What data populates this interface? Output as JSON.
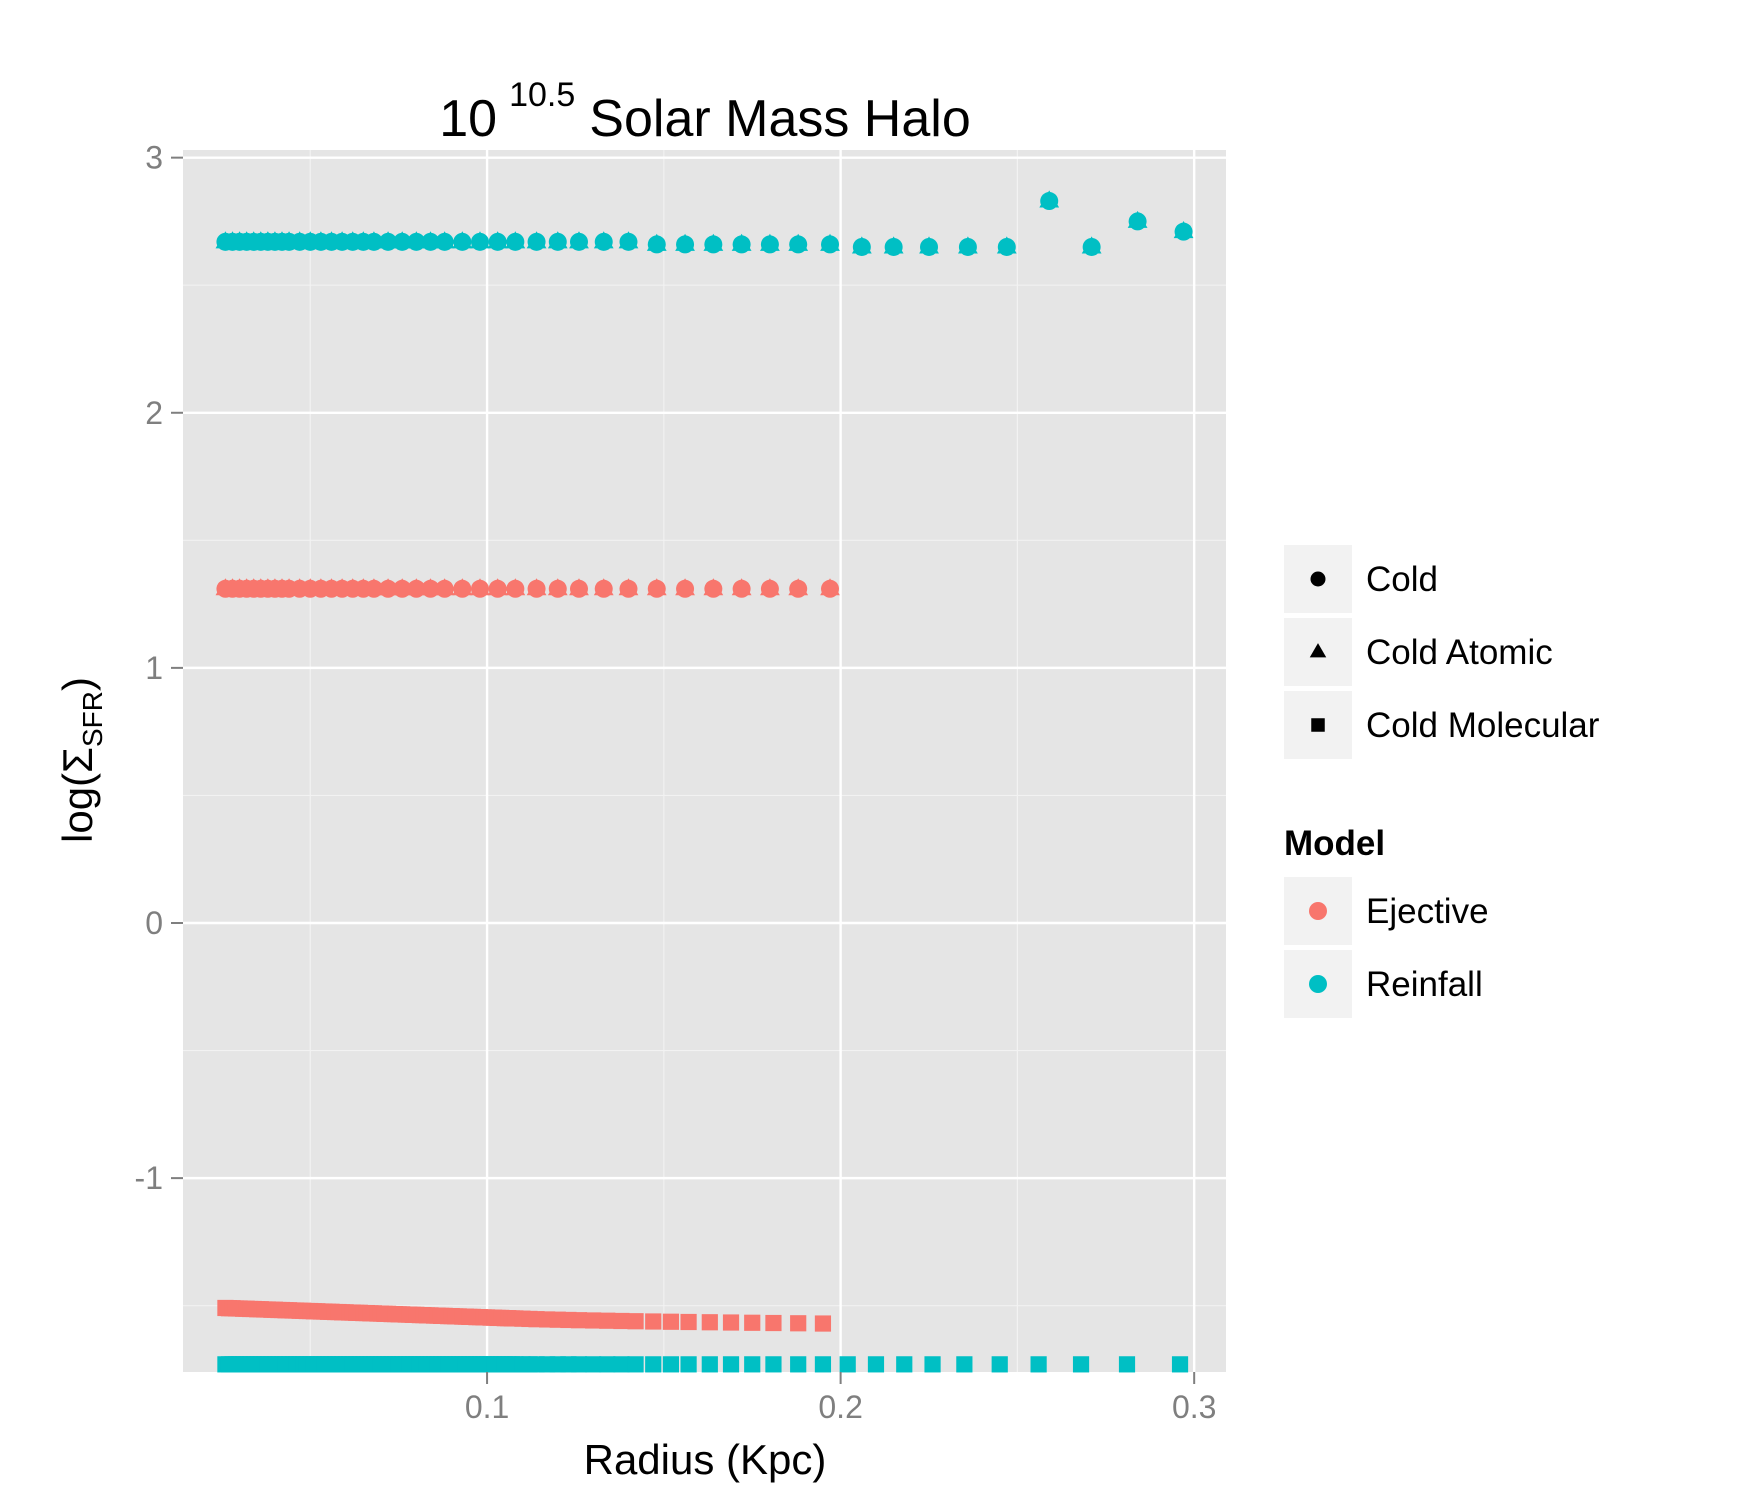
{
  "chart_data": {
    "type": "scatter",
    "title": {
      "base": "10",
      "exponent": "10.5",
      "rest": "Solar Mass Halo"
    },
    "xlabel": "Radius (Kpc)",
    "ylabel": {
      "prefix": "log(",
      "symbol": "Σ",
      "subscript": "SFR",
      "suffix": ")"
    },
    "xlim": [
      0.014,
      0.309
    ],
    "ylim": [
      -1.76,
      3.03
    ],
    "x_ticks": [
      0.1,
      0.2,
      0.3
    ],
    "x_tick_labels": [
      "0.1",
      "0.2",
      "0.3"
    ],
    "y_ticks": [
      -1,
      0,
      1,
      2,
      3
    ],
    "y_tick_labels": [
      "-1",
      "0",
      "1",
      "2",
      "3"
    ],
    "grid": true,
    "legend_placement": "right",
    "shape_legend": [
      {
        "label": "Cold",
        "shape": "circle"
      },
      {
        "label": "Cold Atomic",
        "shape": "triangle"
      },
      {
        "label": "Cold Molecular",
        "shape": "square"
      }
    ],
    "color_legend": {
      "title": "Model",
      "entries": [
        {
          "label": "Ejective",
          "color": "#F8766D"
        },
        {
          "label": "Reinfall",
          "color": "#00BFC4"
        }
      ]
    },
    "series": [
      {
        "model": "Reinfall",
        "component": "Cold",
        "shape": "circle",
        "color": "#00BFC4",
        "x": [
          0.026,
          0.028,
          0.03,
          0.032,
          0.034,
          0.036,
          0.038,
          0.04,
          0.042,
          0.044,
          0.047,
          0.05,
          0.053,
          0.056,
          0.059,
          0.062,
          0.065,
          0.068,
          0.072,
          0.076,
          0.08,
          0.084,
          0.088,
          0.093,
          0.098,
          0.103,
          0.108,
          0.114,
          0.12,
          0.126,
          0.133,
          0.14,
          0.148,
          0.156,
          0.164,
          0.172,
          0.18,
          0.188,
          0.197,
          0.206,
          0.215,
          0.225,
          0.236,
          0.247,
          0.259,
          0.271,
          0.284,
          0.297
        ],
        "y": [
          2.67,
          2.67,
          2.67,
          2.67,
          2.67,
          2.67,
          2.67,
          2.67,
          2.67,
          2.67,
          2.67,
          2.67,
          2.67,
          2.67,
          2.67,
          2.67,
          2.67,
          2.67,
          2.67,
          2.67,
          2.67,
          2.67,
          2.67,
          2.67,
          2.67,
          2.67,
          2.67,
          2.67,
          2.67,
          2.67,
          2.67,
          2.67,
          2.66,
          2.66,
          2.66,
          2.66,
          2.66,
          2.66,
          2.66,
          2.65,
          2.65,
          2.65,
          2.65,
          2.65,
          2.83,
          2.65,
          2.75,
          2.71
        ]
      },
      {
        "model": "Reinfall",
        "component": "Cold Atomic",
        "shape": "triangle",
        "color": "#00BFC4",
        "x": [
          0.026,
          0.028,
          0.03,
          0.032,
          0.034,
          0.036,
          0.038,
          0.04,
          0.042,
          0.044,
          0.047,
          0.05,
          0.053,
          0.056,
          0.059,
          0.062,
          0.065,
          0.068,
          0.072,
          0.076,
          0.08,
          0.084,
          0.088,
          0.093,
          0.098,
          0.103,
          0.108,
          0.114,
          0.12,
          0.126,
          0.133,
          0.14,
          0.148,
          0.156,
          0.164,
          0.172,
          0.18,
          0.188,
          0.197,
          0.206,
          0.215,
          0.225,
          0.236,
          0.247,
          0.259,
          0.271,
          0.284,
          0.297
        ],
        "y": [
          2.67,
          2.67,
          2.67,
          2.67,
          2.67,
          2.67,
          2.67,
          2.67,
          2.67,
          2.67,
          2.67,
          2.67,
          2.67,
          2.67,
          2.67,
          2.67,
          2.67,
          2.67,
          2.67,
          2.67,
          2.67,
          2.67,
          2.67,
          2.67,
          2.67,
          2.67,
          2.67,
          2.67,
          2.67,
          2.67,
          2.67,
          2.67,
          2.66,
          2.66,
          2.66,
          2.66,
          2.66,
          2.66,
          2.66,
          2.65,
          2.65,
          2.65,
          2.65,
          2.65,
          2.83,
          2.65,
          2.75,
          2.71
        ]
      },
      {
        "model": "Ejective",
        "component": "Cold",
        "shape": "circle",
        "color": "#F8766D",
        "x": [
          0.026,
          0.028,
          0.03,
          0.032,
          0.034,
          0.036,
          0.038,
          0.04,
          0.042,
          0.044,
          0.047,
          0.05,
          0.053,
          0.056,
          0.059,
          0.062,
          0.065,
          0.068,
          0.072,
          0.076,
          0.08,
          0.084,
          0.088,
          0.093,
          0.098,
          0.103,
          0.108,
          0.114,
          0.12,
          0.126,
          0.133,
          0.14,
          0.148,
          0.156,
          0.164,
          0.172,
          0.18,
          0.188,
          0.197
        ],
        "y": [
          1.31,
          1.31,
          1.31,
          1.31,
          1.31,
          1.31,
          1.31,
          1.31,
          1.31,
          1.31,
          1.31,
          1.31,
          1.31,
          1.31,
          1.31,
          1.31,
          1.31,
          1.31,
          1.31,
          1.31,
          1.31,
          1.31,
          1.31,
          1.31,
          1.31,
          1.31,
          1.31,
          1.31,
          1.31,
          1.31,
          1.31,
          1.31,
          1.31,
          1.31,
          1.31,
          1.31,
          1.31,
          1.31,
          1.31
        ]
      },
      {
        "model": "Ejective",
        "component": "Cold Atomic",
        "shape": "triangle",
        "color": "#F8766D",
        "x": [
          0.026,
          0.028,
          0.03,
          0.032,
          0.034,
          0.036,
          0.038,
          0.04,
          0.042,
          0.044,
          0.047,
          0.05,
          0.053,
          0.056,
          0.059,
          0.062,
          0.065,
          0.068,
          0.072,
          0.076,
          0.08,
          0.084,
          0.088,
          0.093,
          0.098,
          0.103,
          0.108,
          0.114,
          0.12,
          0.126,
          0.133,
          0.14,
          0.148,
          0.156,
          0.164,
          0.172,
          0.18,
          0.188,
          0.197
        ],
        "y": [
          1.31,
          1.31,
          1.31,
          1.31,
          1.31,
          1.31,
          1.31,
          1.31,
          1.31,
          1.31,
          1.31,
          1.31,
          1.31,
          1.31,
          1.31,
          1.31,
          1.31,
          1.31,
          1.31,
          1.31,
          1.31,
          1.31,
          1.31,
          1.31,
          1.31,
          1.31,
          1.31,
          1.31,
          1.31,
          1.31,
          1.31,
          1.31,
          1.31,
          1.31,
          1.31,
          1.31,
          1.31,
          1.31,
          1.31
        ]
      },
      {
        "model": "Ejective",
        "component": "Cold Molecular",
        "shape": "square",
        "color": "#F8766D",
        "x": [
          0.026,
          0.027,
          0.028,
          0.029,
          0.03,
          0.031,
          0.032,
          0.033,
          0.034,
          0.035,
          0.036,
          0.037,
          0.038,
          0.039,
          0.04,
          0.041,
          0.042,
          0.043,
          0.044,
          0.045,
          0.046,
          0.047,
          0.048,
          0.049,
          0.05,
          0.051,
          0.052,
          0.053,
          0.054,
          0.055,
          0.056,
          0.057,
          0.058,
          0.059,
          0.06,
          0.061,
          0.062,
          0.063,
          0.064,
          0.065,
          0.066,
          0.067,
          0.068,
          0.069,
          0.07,
          0.071,
          0.072,
          0.073,
          0.074,
          0.075,
          0.076,
          0.077,
          0.078,
          0.079,
          0.08,
          0.081,
          0.082,
          0.083,
          0.084,
          0.085,
          0.086,
          0.087,
          0.088,
          0.089,
          0.09,
          0.091,
          0.092,
          0.093,
          0.094,
          0.095,
          0.096,
          0.097,
          0.098,
          0.099,
          0.1,
          0.101,
          0.102,
          0.103,
          0.104,
          0.105,
          0.106,
          0.107,
          0.108,
          0.11,
          0.112,
          0.114,
          0.117,
          0.12,
          0.123,
          0.126,
          0.13,
          0.134,
          0.138,
          0.142,
          0.147,
          0.152,
          0.157,
          0.163,
          0.169,
          0.175,
          0.181,
          0.188,
          0.195
        ],
        "y": [
          -1.509,
          -1.51,
          -1.51,
          -1.511,
          -1.511,
          -1.512,
          -1.512,
          -1.513,
          -1.513,
          -1.514,
          -1.514,
          -1.515,
          -1.515,
          -1.516,
          -1.516,
          -1.517,
          -1.517,
          -1.518,
          -1.518,
          -1.519,
          -1.519,
          -1.52,
          -1.52,
          -1.521,
          -1.521,
          -1.522,
          -1.522,
          -1.523,
          -1.523,
          -1.524,
          -1.524,
          -1.525,
          -1.525,
          -1.526,
          -1.526,
          -1.527,
          -1.527,
          -1.528,
          -1.528,
          -1.529,
          -1.529,
          -1.53,
          -1.53,
          -1.531,
          -1.531,
          -1.532,
          -1.532,
          -1.533,
          -1.533,
          -1.534,
          -1.534,
          -1.535,
          -1.535,
          -1.536,
          -1.536,
          -1.537,
          -1.537,
          -1.538,
          -1.538,
          -1.539,
          -1.539,
          -1.54,
          -1.54,
          -1.541,
          -1.541,
          -1.542,
          -1.542,
          -1.543,
          -1.543,
          -1.544,
          -1.544,
          -1.545,
          -1.545,
          -1.546,
          -1.546,
          -1.547,
          -1.547,
          -1.548,
          -1.548,
          -1.549,
          -1.549,
          -1.55,
          -1.55,
          -1.551,
          -1.552,
          -1.553,
          -1.554,
          -1.555,
          -1.556,
          -1.557,
          -1.558,
          -1.559,
          -1.56,
          -1.561,
          -1.562,
          -1.563,
          -1.564,
          -1.565,
          -1.566,
          -1.567,
          -1.568,
          -1.569,
          -1.57
        ]
      },
      {
        "model": "Reinfall",
        "component": "Cold Molecular",
        "shape": "square",
        "color": "#00BFC4",
        "x": [
          0.026,
          0.027,
          0.028,
          0.029,
          0.03,
          0.031,
          0.032,
          0.033,
          0.034,
          0.035,
          0.036,
          0.037,
          0.038,
          0.039,
          0.04,
          0.041,
          0.042,
          0.043,
          0.044,
          0.045,
          0.046,
          0.047,
          0.048,
          0.049,
          0.05,
          0.051,
          0.052,
          0.053,
          0.054,
          0.055,
          0.056,
          0.057,
          0.058,
          0.059,
          0.06,
          0.061,
          0.062,
          0.063,
          0.064,
          0.065,
          0.066,
          0.067,
          0.068,
          0.069,
          0.07,
          0.071,
          0.072,
          0.073,
          0.074,
          0.075,
          0.076,
          0.077,
          0.078,
          0.079,
          0.08,
          0.081,
          0.082,
          0.083,
          0.084,
          0.085,
          0.086,
          0.087,
          0.088,
          0.089,
          0.09,
          0.091,
          0.092,
          0.093,
          0.094,
          0.095,
          0.096,
          0.097,
          0.098,
          0.099,
          0.1,
          0.101,
          0.102,
          0.103,
          0.104,
          0.105,
          0.106,
          0.107,
          0.108,
          0.11,
          0.112,
          0.114,
          0.117,
          0.12,
          0.123,
          0.126,
          0.13,
          0.134,
          0.138,
          0.142,
          0.147,
          0.152,
          0.157,
          0.163,
          0.169,
          0.175,
          0.181,
          0.188,
          0.195,
          0.202,
          0.21,
          0.218,
          0.226,
          0.235,
          0.245,
          0.256,
          0.268,
          0.281,
          0.296
        ],
        "y": [
          -1.73,
          -1.73,
          -1.73,
          -1.73,
          -1.73,
          -1.73,
          -1.73,
          -1.73,
          -1.73,
          -1.73,
          -1.73,
          -1.73,
          -1.73,
          -1.73,
          -1.73,
          -1.73,
          -1.73,
          -1.73,
          -1.73,
          -1.73,
          -1.73,
          -1.73,
          -1.73,
          -1.73,
          -1.73,
          -1.73,
          -1.73,
          -1.73,
          -1.73,
          -1.73,
          -1.73,
          -1.73,
          -1.73,
          -1.73,
          -1.73,
          -1.73,
          -1.73,
          -1.73,
          -1.73,
          -1.73,
          -1.73,
          -1.73,
          -1.73,
          -1.73,
          -1.73,
          -1.73,
          -1.73,
          -1.73,
          -1.73,
          -1.73,
          -1.73,
          -1.73,
          -1.73,
          -1.73,
          -1.73,
          -1.73,
          -1.73,
          -1.73,
          -1.73,
          -1.73,
          -1.73,
          -1.73,
          -1.73,
          -1.73,
          -1.73,
          -1.73,
          -1.73,
          -1.73,
          -1.73,
          -1.73,
          -1.73,
          -1.73,
          -1.73,
          -1.73,
          -1.73,
          -1.73,
          -1.73,
          -1.73,
          -1.73,
          -1.73,
          -1.73,
          -1.73,
          -1.73,
          -1.73,
          -1.73,
          -1.73,
          -1.73,
          -1.73,
          -1.73,
          -1.73,
          -1.73,
          -1.73,
          -1.73,
          -1.73,
          -1.73,
          -1.73,
          -1.73,
          -1.73,
          -1.73,
          -1.73,
          -1.73,
          -1.73,
          -1.73,
          -1.73,
          -1.73,
          -1.73,
          -1.73,
          -1.73,
          -1.73,
          -1.73,
          -1.73,
          -1.73,
          -1.73
        ]
      }
    ]
  }
}
